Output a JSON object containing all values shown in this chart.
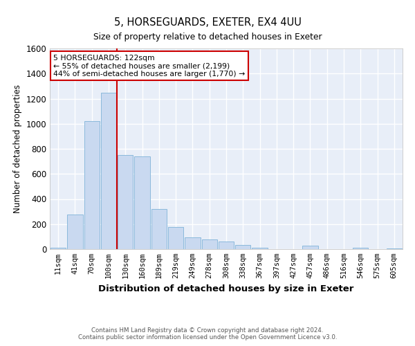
{
  "title": "5, HORSEGUARDS, EXETER, EX4 4UU",
  "subtitle": "Size of property relative to detached houses in Exeter",
  "xlabel": "Distribution of detached houses by size in Exeter",
  "ylabel": "Number of detached properties",
  "categories": [
    "11sqm",
    "41sqm",
    "70sqm",
    "100sqm",
    "130sqm",
    "160sqm",
    "189sqm",
    "219sqm",
    "249sqm",
    "278sqm",
    "308sqm",
    "338sqm",
    "367sqm",
    "397sqm",
    "427sqm",
    "457sqm",
    "486sqm",
    "516sqm",
    "546sqm",
    "575sqm",
    "605sqm"
  ],
  "values": [
    10,
    275,
    1020,
    1245,
    750,
    740,
    320,
    175,
    95,
    80,
    60,
    35,
    10,
    0,
    0,
    30,
    0,
    0,
    10,
    0,
    5
  ],
  "bar_color": "#c9d9f0",
  "bar_edge_color": "#7fb3d8",
  "background_color": "#e8eef8",
  "grid_color": "#ffffff",
  "vline_x": 3.5,
  "annotation_text_line1": "5 HORSEGUARDS: 122sqm",
  "annotation_text_line2": "← 55% of detached houses are smaller (2,199)",
  "annotation_text_line3": "44% of semi-detached houses are larger (1,770) →",
  "annotation_box_color": "#ffffff",
  "annotation_box_edge_color": "#cc0000",
  "vline_color": "#cc0000",
  "ylim": [
    0,
    1600
  ],
  "yticks": [
    0,
    200,
    400,
    600,
    800,
    1000,
    1200,
    1400,
    1600
  ],
  "footer_line1": "Contains HM Land Registry data © Crown copyright and database right 2024.",
  "footer_line2": "Contains public sector information licensed under the Open Government Licence v3.0."
}
